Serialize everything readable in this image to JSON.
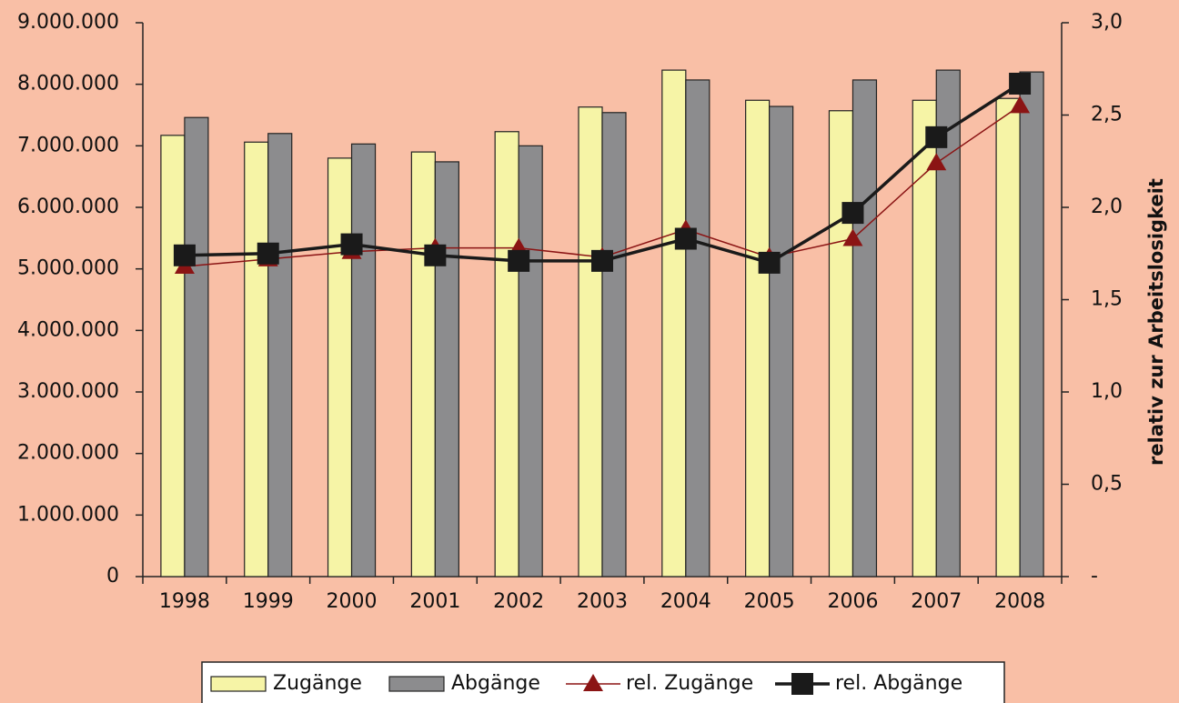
{
  "chart_data": {
    "type": "bar_line",
    "categories": [
      "1998",
      "1999",
      "2000",
      "2001",
      "2002",
      "2003",
      "2004",
      "2005",
      "2006",
      "2007",
      "2008"
    ],
    "series": [
      {
        "name": "Zugänge",
        "type": "bar",
        "color": "#f6f4a6",
        "values": [
          7170000,
          7060000,
          6800000,
          6900000,
          7230000,
          7630000,
          8230000,
          7740000,
          7570000,
          7740000,
          7770000
        ]
      },
      {
        "name": "Abgänge",
        "type": "bar",
        "color": "#8c8c8e",
        "values": [
          7460000,
          7200000,
          7030000,
          6740000,
          7000000,
          7540000,
          8070000,
          7640000,
          8070000,
          8230000,
          8200000
        ]
      },
      {
        "name": "rel. Zugänge",
        "type": "line",
        "axis": "y2",
        "color": "#8b1414",
        "marker": "triangle",
        "values": [
          1.68,
          1.72,
          1.76,
          1.78,
          1.78,
          1.73,
          1.88,
          1.73,
          1.83,
          2.24,
          2.55
        ]
      },
      {
        "name": "rel. Abgänge",
        "type": "line",
        "axis": "y2",
        "color": "#1a1a1a",
        "marker": "square",
        "values": [
          1.74,
          1.75,
          1.8,
          1.74,
          1.71,
          1.71,
          1.83,
          1.7,
          1.97,
          2.38,
          2.67
        ]
      }
    ],
    "ylim": [
      0,
      9000000
    ],
    "yticks": [
      {
        "value": 0,
        "label": "0"
      },
      {
        "value": 1000000,
        "label": "1.000.000"
      },
      {
        "value": 2000000,
        "label": "2.000.000"
      },
      {
        "value": 3000000,
        "label": "3.000.000"
      },
      {
        "value": 4000000,
        "label": "4.000.000"
      },
      {
        "value": 5000000,
        "label": "5.000.000"
      },
      {
        "value": 6000000,
        "label": "6.000.000"
      },
      {
        "value": 7000000,
        "label": "7.000.000"
      },
      {
        "value": 8000000,
        "label": "8.000.000"
      },
      {
        "value": 9000000,
        "label": "9.000.000"
      }
    ],
    "y2lim": [
      0,
      3
    ],
    "y2ticks": [
      {
        "value": 0,
        "label": "-"
      },
      {
        "value": 0.5,
        "label": "0,5"
      },
      {
        "value": 1,
        "label": "1,0"
      },
      {
        "value": 1.5,
        "label": "1,5"
      },
      {
        "value": 2,
        "label": "2,0"
      },
      {
        "value": 2.5,
        "label": "2,5"
      },
      {
        "value": 3,
        "label": "3,0"
      }
    ],
    "y2label": "relativ zur Arbeitslosigkeit",
    "legend": "bottom"
  }
}
